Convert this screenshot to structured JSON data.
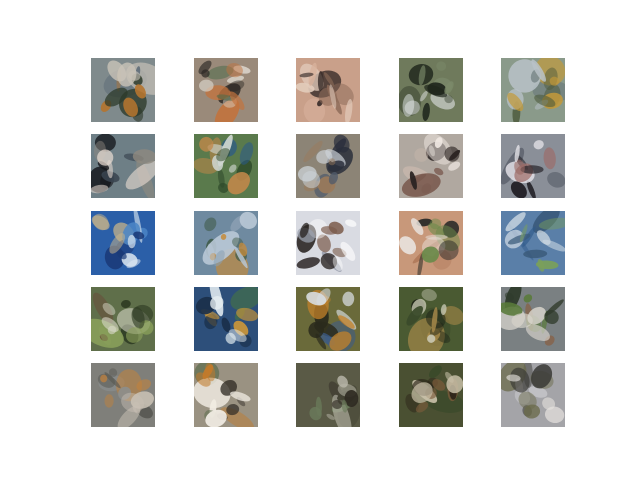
{
  "figure": {
    "rows": 5,
    "cols": 5,
    "tiles": [
      {
        "bg": "#7f8a8c",
        "c1": "#2d3a2a",
        "c2": "#c9c3b8",
        "c3": "#b4742f",
        "c4": "#5d6b78"
      },
      {
        "bg": "#9a8a7a",
        "c1": "#2a2622",
        "c2": "#d8d2c8",
        "c3": "#c2733d",
        "c4": "#4f6b4a"
      },
      {
        "bg": "#c9a08a",
        "c1": "#3a2e2a",
        "c2": "#e2cbbb",
        "c3": "#8c6a58",
        "c4": "#d9b29c"
      },
      {
        "bg": "#6f7a5c",
        "c1": "#1f261c",
        "c2": "#e9ecef",
        "c3": "#7b8a6a",
        "c4": "#3f4a36"
      },
      {
        "bg": "#8a9a8a",
        "c1": "#4d5a3c",
        "c2": "#b9c2c8",
        "c3": "#c49a3a",
        "c4": "#6b7a7c"
      },
      {
        "bg": "#6e7f86",
        "c1": "#15171c",
        "c2": "#e4d8cf",
        "c3": "#8f8a80",
        "c4": "#3a4550"
      },
      {
        "bg": "#5a7a4c",
        "c1": "#2f4a2a",
        "c2": "#cfd6d0",
        "c3": "#c3884a",
        "c4": "#2a5a8a"
      },
      {
        "bg": "#8c8476",
        "c1": "#2a2f3c",
        "c2": "#ced4da",
        "c3": "#9a7a5a",
        "c4": "#4f5a6b"
      },
      {
        "bg": "#b0a8a0",
        "c1": "#2a2322",
        "c2": "#efe8e2",
        "c3": "#7a5a4f",
        "c4": "#c9b8ad"
      },
      {
        "bg": "#8a8f98",
        "c1": "#1e1c22",
        "c2": "#e6e4ea",
        "c3": "#9c6b66",
        "c4": "#5a5f6b"
      },
      {
        "bg": "#2b5fa8",
        "c1": "#1a3a78",
        "c2": "#dfe9f2",
        "c3": "#c6b48a",
        "c4": "#4c86c6"
      },
      {
        "bg": "#6f8aa0",
        "c1": "#3f5a48",
        "c2": "#b9c8d6",
        "c3": "#c58a3a",
        "c4": "#8aa0b2"
      },
      {
        "bg": "#d9dbe2",
        "c1": "#2a2422",
        "c2": "#ffffff",
        "c3": "#7a5a4a",
        "c4": "#9aa0ae"
      },
      {
        "bg": "#c8987a",
        "c1": "#2a2a28",
        "c2": "#e8e2dc",
        "c3": "#6a8a4a",
        "c4": "#b07a5a"
      },
      {
        "bg": "#5a7fa8",
        "c1": "#3a5a7a",
        "c2": "#d0dbe4",
        "c3": "#7aa05a",
        "c4": "#2f5a8a"
      },
      {
        "bg": "#5f6f4a",
        "c1": "#2f3c24",
        "c2": "#d8d8c8",
        "c3": "#8aa05a",
        "c4": "#6a4a3a"
      },
      {
        "bg": "#2d4f7a",
        "c1": "#1a2f4a",
        "c2": "#e6eef2",
        "c3": "#c8953a",
        "c4": "#4a7a3a"
      },
      {
        "bg": "#6a6a3a",
        "c1": "#2a2a1c",
        "c2": "#d8dde2",
        "c3": "#c4822a",
        "c4": "#3a5a8a"
      },
      {
        "bg": "#4a5a32",
        "c1": "#1f2618",
        "c2": "#c8c8b4",
        "c3": "#a88a4a",
        "c4": "#3a4a2a"
      },
      {
        "bg": "#7a8082",
        "c1": "#2f3a2a",
        "c2": "#d8d4cc",
        "c3": "#5a7a3a",
        "c4": "#8a5a3a"
      },
      {
        "bg": "#7f7f7a",
        "c1": "#5a5a54",
        "c2": "#c8c0b4",
        "c3": "#c4823a",
        "c4": "#8a8f90"
      },
      {
        "bg": "#9a9282",
        "c1": "#2f2a24",
        "c2": "#f0ebe2",
        "c3": "#c47a2a",
        "c4": "#5a6a4a"
      },
      {
        "bg": "#5a5a46",
        "c1": "#2f2a22",
        "c2": "#b8b6a8",
        "c3": "#6a7a5a",
        "c4": "#4a4a3a"
      },
      {
        "bg": "#4a5032",
        "c1": "#2a2218",
        "c2": "#c8c0a8",
        "c3": "#7a5a3a",
        "c4": "#3a4a2a"
      },
      {
        "bg": "#a4a4a8",
        "c1": "#3a3a36",
        "c2": "#e6e2de",
        "c3": "#6a6a4a",
        "c4": "#c8c8cc"
      }
    ]
  }
}
